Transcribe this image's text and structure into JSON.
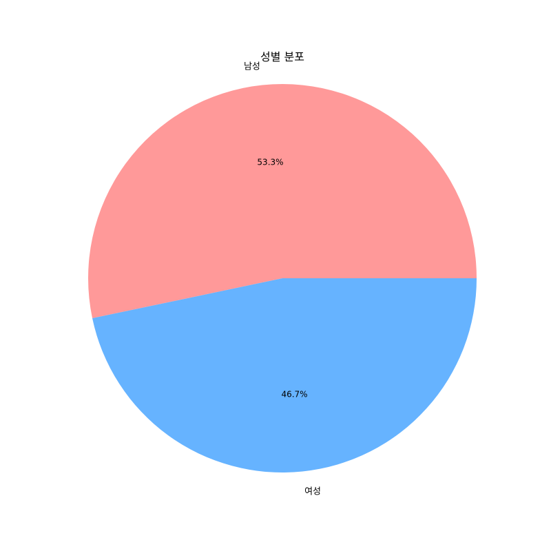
{
  "chart_data": {
    "type": "pie",
    "title": "성별 분포",
    "categories": [
      "남성",
      "여성"
    ],
    "values": [
      53.3,
      46.7
    ],
    "value_labels": [
      "53.3%",
      "46.7%"
    ],
    "colors": [
      "#ff9999",
      "#66b3ff"
    ],
    "start_angle_deg": 0,
    "direction": "counterclockwise",
    "legend": "none"
  }
}
